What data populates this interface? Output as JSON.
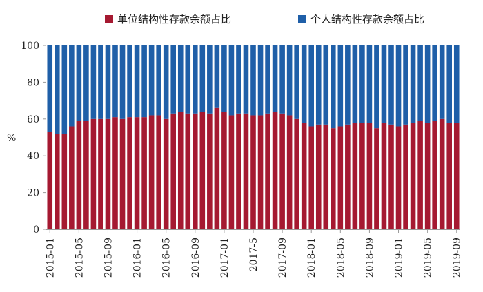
{
  "chart_data": {
    "type": "bar",
    "stacked": true,
    "ylabel": "%",
    "ylim": [
      0,
      100
    ],
    "yticks": [
      0,
      20,
      40,
      60,
      80,
      100
    ],
    "grid": false,
    "legend_position": "top",
    "series": [
      {
        "name": "单位结构性存款余额占比",
        "color": "#a51931",
        "values": [
          53,
          52,
          52,
          56,
          59,
          59,
          60,
          60,
          60,
          61,
          60,
          61,
          61,
          61,
          62,
          62,
          60,
          63,
          64,
          63,
          63,
          64,
          63,
          66,
          64,
          62,
          63,
          63,
          62,
          62,
          63,
          64,
          63,
          62,
          60,
          58,
          56,
          57,
          57,
          55,
          56,
          57,
          58,
          58,
          58,
          55,
          58,
          57,
          56,
          57,
          58,
          59,
          58,
          59,
          60,
          58,
          58
        ]
      },
      {
        "name": "个人结构性存款余额占比",
        "color": "#1f5fa8",
        "values": [
          47,
          48,
          48,
          44,
          41,
          41,
          40,
          40,
          40,
          39,
          40,
          39,
          39,
          39,
          38,
          38,
          40,
          37,
          36,
          37,
          37,
          36,
          37,
          34,
          36,
          38,
          37,
          37,
          38,
          38,
          37,
          36,
          37,
          38,
          40,
          42,
          44,
          43,
          43,
          45,
          44,
          43,
          42,
          42,
          42,
          45,
          42,
          43,
          44,
          43,
          42,
          41,
          42,
          41,
          40,
          42,
          42
        ]
      }
    ],
    "x_tick_labels": [
      "2015-01",
      "2015-05",
      "2015-09",
      "2016-01",
      "2016-05",
      "2016-09",
      "2017-01",
      "2017-5",
      "2017-09",
      "2018-01",
      "2018-05",
      "2018-09",
      "2019-01",
      "2019-05",
      "2019-09"
    ]
  }
}
